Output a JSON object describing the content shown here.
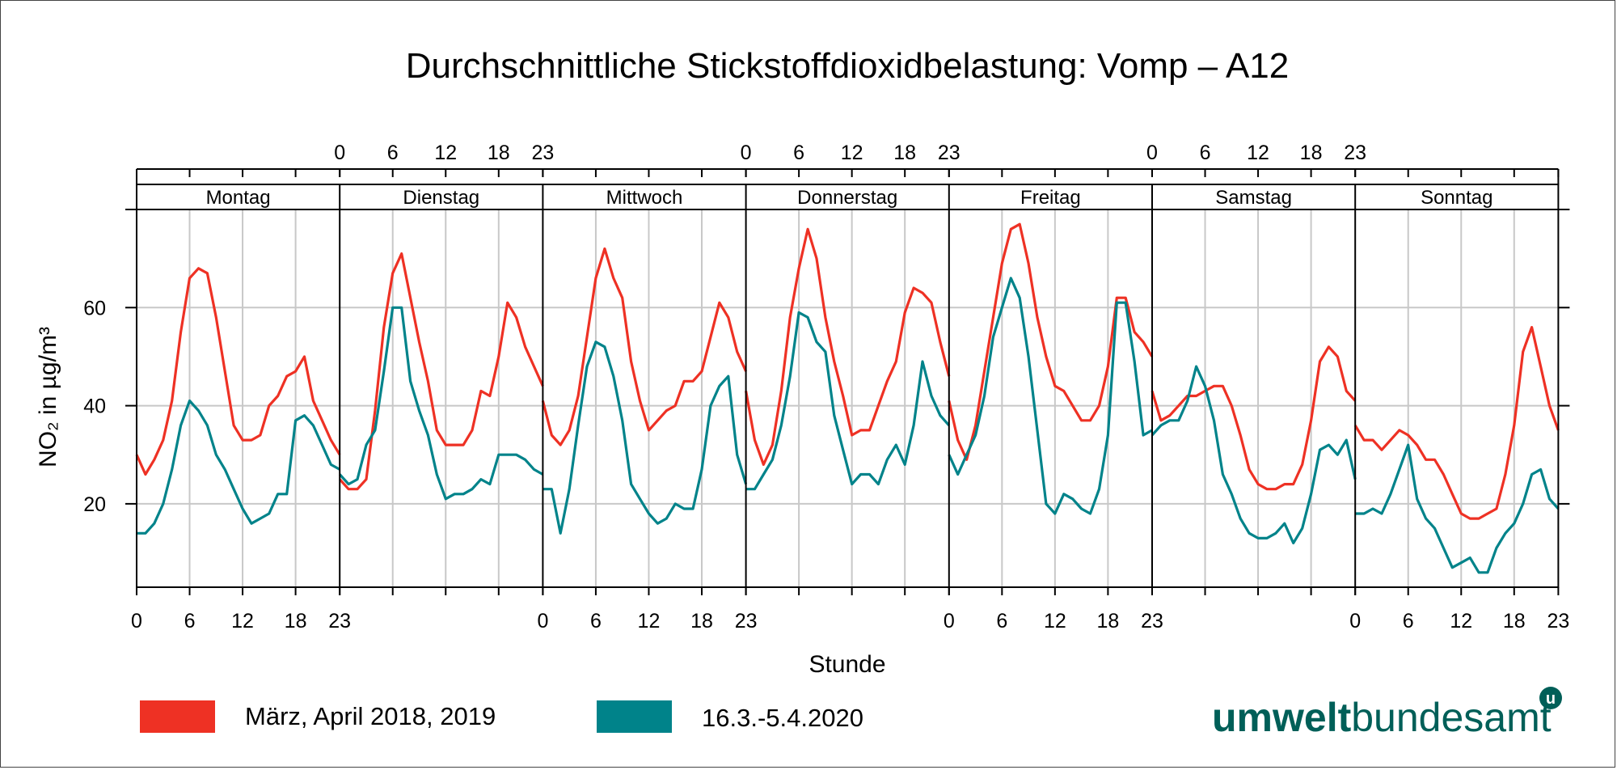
{
  "chart_data": {
    "type": "line",
    "title": "Durchschnittliche Stickstoffdioxidbelastung: Vomp – A12",
    "xlabel": "Stunde",
    "ylabel": "NO₂ in µg/m³",
    "ylim": [
      3,
      80
    ],
    "yticks": [
      20,
      40,
      60
    ],
    "hour_ticks": [
      0,
      6,
      12,
      18,
      23
    ],
    "grid": true,
    "legend_position": "bottom-left",
    "panels": [
      "Montag",
      "Dienstag",
      "Mittwoch",
      "Donnerstag",
      "Freitag",
      "Samstag",
      "Sonntag"
    ],
    "hours": [
      0,
      1,
      2,
      3,
      4,
      5,
      6,
      7,
      8,
      9,
      10,
      11,
      12,
      13,
      14,
      15,
      16,
      17,
      18,
      19,
      20,
      21,
      22,
      23
    ],
    "series": [
      {
        "name": "März, April 2018, 2019",
        "color": "#ee3124",
        "values": [
          [
            30,
            26,
            29,
            33,
            41,
            55,
            66,
            68,
            67,
            58,
            47,
            36,
            33,
            33,
            34,
            40,
            42,
            46,
            47,
            50,
            41,
            37,
            33,
            30
          ],
          [
            25,
            23,
            23,
            25,
            39,
            56,
            67,
            71,
            62,
            53,
            45,
            35,
            32,
            32,
            32,
            35,
            43,
            42,
            50,
            61,
            58,
            52,
            48,
            44
          ],
          [
            41,
            34,
            32,
            35,
            42,
            54,
            66,
            72,
            66,
            62,
            49,
            41,
            35,
            37,
            39,
            40,
            45,
            45,
            47,
            54,
            61,
            58,
            51,
            47
          ],
          [
            43,
            33,
            28,
            32,
            43,
            58,
            68,
            76,
            70,
            58,
            49,
            42,
            34,
            35,
            35,
            40,
            45,
            49,
            59,
            64,
            63,
            61,
            53,
            46
          ],
          [
            41,
            33,
            29,
            36,
            47,
            58,
            69,
            76,
            77,
            69,
            58,
            50,
            44,
            43,
            40,
            37,
            37,
            40,
            48,
            62,
            62,
            55,
            53,
            50
          ],
          [
            43,
            37,
            38,
            40,
            42,
            42,
            43,
            44,
            44,
            40,
            34,
            27,
            24,
            23,
            23,
            24,
            24,
            28,
            37,
            49,
            52,
            50,
            43,
            41
          ],
          [
            36,
            33,
            33,
            31,
            33,
            35,
            34,
            32,
            29,
            29,
            26,
            22,
            18,
            17,
            17,
            18,
            19,
            26,
            36,
            51,
            56,
            48,
            40,
            35
          ]
        ]
      },
      {
        "name": "16.3.-5.4.2020",
        "color": "#00838a",
        "values": [
          [
            14,
            14,
            16,
            20,
            27,
            36,
            41,
            39,
            36,
            30,
            27,
            23,
            19,
            16,
            17,
            18,
            22,
            22,
            37,
            38,
            36,
            32,
            28,
            27
          ],
          [
            26,
            24,
            25,
            32,
            35,
            47,
            60,
            60,
            45,
            39,
            34,
            26,
            21,
            22,
            22,
            23,
            25,
            24,
            30,
            30,
            30,
            29,
            27,
            26
          ],
          [
            23,
            23,
            14,
            23,
            36,
            48,
            53,
            52,
            46,
            37,
            24,
            21,
            18,
            16,
            17,
            20,
            19,
            19,
            27,
            40,
            44,
            46,
            30,
            24
          ],
          [
            23,
            23,
            26,
            29,
            36,
            46,
            59,
            58,
            53,
            51,
            38,
            31,
            24,
            26,
            26,
            24,
            29,
            32,
            28,
            36,
            49,
            42,
            38,
            36
          ],
          [
            30,
            26,
            30,
            34,
            42,
            54,
            60,
            66,
            62,
            50,
            35,
            20,
            18,
            22,
            21,
            19,
            18,
            23,
            34,
            61,
            61,
            49,
            34,
            35
          ],
          [
            34,
            36,
            37,
            37,
            41,
            48,
            44,
            37,
            26,
            22,
            17,
            14,
            13,
            13,
            14,
            16,
            12,
            15,
            22,
            31,
            32,
            30,
            33,
            25
          ],
          [
            18,
            18,
            19,
            18,
            22,
            27,
            32,
            21,
            17,
            15,
            11,
            7,
            8,
            9,
            6,
            6,
            11,
            14,
            16,
            20,
            26,
            27,
            21,
            19
          ]
        ]
      }
    ]
  },
  "legend": {
    "items": [
      {
        "label": "März, April 2018, 2019",
        "color": "#ee3124"
      },
      {
        "label": "16.3.-5.4.2020",
        "color": "#00838a"
      }
    ]
  },
  "logo": {
    "part1": "umwelt",
    "part2": "bundesamt",
    "mark": "u"
  }
}
